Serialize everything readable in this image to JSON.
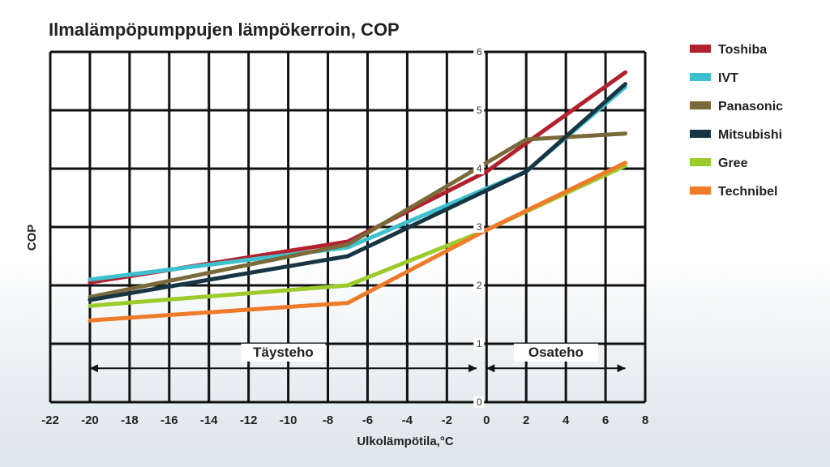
{
  "chart_data": {
    "type": "line",
    "title": "Ilmalämpöpumppujen lämpökerroin, COP",
    "xlabel": "Ulkolämpötila,°C",
    "ylabel": "COP",
    "xlim": [
      -22,
      8
    ],
    "ylim": [
      0,
      6
    ],
    "x_ticks": [
      "-22",
      "-20",
      "-18",
      "-16",
      "-14",
      "-12",
      "-10",
      "-8",
      "-6",
      "-4",
      "-2",
      "0",
      "2",
      "4",
      "6",
      "8"
    ],
    "y_ticks": [
      "0",
      "1",
      "2",
      "3",
      "4",
      "5",
      "6"
    ],
    "grid": true,
    "legend_position": "right",
    "regions": [
      {
        "label": "Täysteho",
        "from": -20,
        "to": -0.5
      },
      {
        "label": "Osateho",
        "from": 0,
        "to": 7
      }
    ],
    "series": [
      {
        "name": "Toshiba",
        "color": "#b3202e",
        "x": [
          -20,
          -7,
          0,
          7
        ],
        "y": [
          2.05,
          2.75,
          3.95,
          5.65
        ]
      },
      {
        "name": "IVT",
        "color": "#3ec1cf",
        "x": [
          -20,
          -7,
          2,
          7
        ],
        "y": [
          2.1,
          2.65,
          3.95,
          5.4
        ]
      },
      {
        "name": "Panasonic",
        "color": "#7a6a3a",
        "x": [
          -20,
          -7,
          2,
          7
        ],
        "y": [
          1.8,
          2.7,
          4.5,
          4.6
        ]
      },
      {
        "name": "Mitsubishi",
        "color": "#173543",
        "x": [
          -20,
          -7,
          2,
          7
        ],
        "y": [
          1.75,
          2.5,
          3.95,
          5.45
        ]
      },
      {
        "name": "Gree",
        "color": "#9ccb2c",
        "x": [
          -20,
          -7,
          0,
          7
        ],
        "y": [
          1.65,
          2.0,
          2.95,
          4.05
        ]
      },
      {
        "name": "Technibel",
        "color": "#ef7a2a",
        "x": [
          -20,
          -7,
          0,
          7
        ],
        "y": [
          1.4,
          1.7,
          2.95,
          4.1
        ]
      }
    ]
  }
}
